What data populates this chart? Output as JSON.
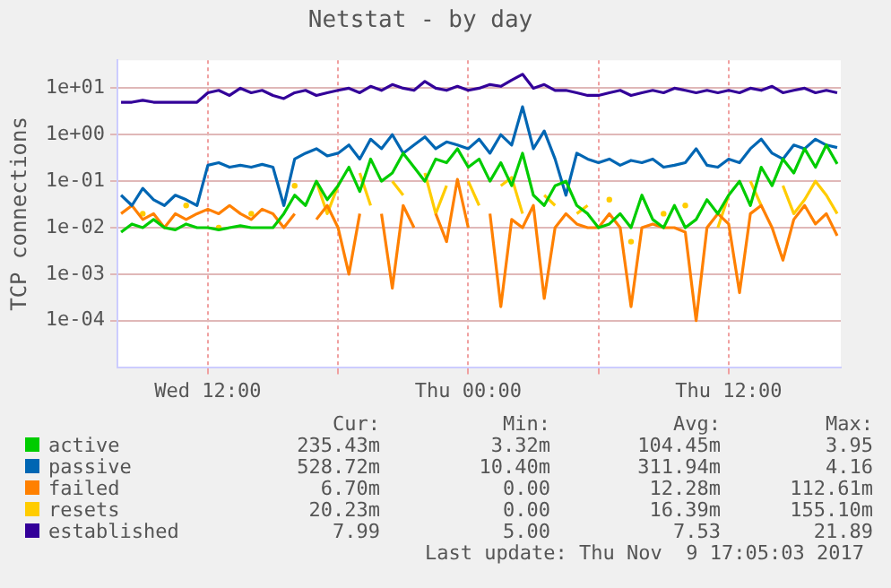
{
  "chart_data": {
    "type": "line",
    "title": "Netstat - by day",
    "ylabel": "TCP connections",
    "log": "y",
    "grid": true,
    "legend": "bottom",
    "marker": "none",
    "line_style": "solid",
    "ylim": [
      1e-05,
      40
    ],
    "yticks": [
      {
        "value": 0.0001,
        "label": "1e-04"
      },
      {
        "value": 0.001,
        "label": "1e-03"
      },
      {
        "value": 0.01,
        "label": "1e-02"
      },
      {
        "value": 0.1,
        "label": "1e-01"
      },
      {
        "value": 1,
        "label": "1e+00"
      },
      {
        "value": 10,
        "label": "1e+01"
      }
    ],
    "xlim": [
      "2017-11-08T07:50",
      "2017-11-09T17:10"
    ],
    "xticks": [
      {
        "value": "2017-11-08T12:00",
        "label": "Wed 12:00"
      },
      {
        "value": "2017-11-08T18:00",
        "label": null
      },
      {
        "value": "2017-11-09T00:00",
        "label": "Thu 00:00"
      },
      {
        "value": "2017-11-09T06:00",
        "label": null
      },
      {
        "value": "2017-11-09T12:00",
        "label": "Thu 12:00"
      }
    ],
    "x": [
      "2017-11-08T08:00",
      "2017-11-08T08:30",
      "2017-11-08T09:00",
      "2017-11-08T09:30",
      "2017-11-08T10:00",
      "2017-11-08T10:30",
      "2017-11-08T11:00",
      "2017-11-08T11:30",
      "2017-11-08T12:00",
      "2017-11-08T12:30",
      "2017-11-08T13:00",
      "2017-11-08T13:30",
      "2017-11-08T14:00",
      "2017-11-08T14:30",
      "2017-11-08T15:00",
      "2017-11-08T15:30",
      "2017-11-08T16:00",
      "2017-11-08T16:30",
      "2017-11-08T17:00",
      "2017-11-08T17:30",
      "2017-11-08T18:00",
      "2017-11-08T18:30",
      "2017-11-08T19:00",
      "2017-11-08T19:30",
      "2017-11-08T20:00",
      "2017-11-08T20:30",
      "2017-11-08T21:00",
      "2017-11-08T21:30",
      "2017-11-08T22:00",
      "2017-11-08T22:30",
      "2017-11-08T23:00",
      "2017-11-08T23:30",
      "2017-11-09T00:00",
      "2017-11-09T00:30",
      "2017-11-09T01:00",
      "2017-11-09T01:30",
      "2017-11-09T02:00",
      "2017-11-09T02:30",
      "2017-11-09T03:00",
      "2017-11-09T03:30",
      "2017-11-09T04:00",
      "2017-11-09T04:30",
      "2017-11-09T05:00",
      "2017-11-09T05:30",
      "2017-11-09T06:00",
      "2017-11-09T06:30",
      "2017-11-09T07:00",
      "2017-11-09T07:30",
      "2017-11-09T08:00",
      "2017-11-09T08:30",
      "2017-11-09T09:00",
      "2017-11-09T09:30",
      "2017-11-09T10:00",
      "2017-11-09T10:30",
      "2017-11-09T11:00",
      "2017-11-09T11:30",
      "2017-11-09T12:00",
      "2017-11-09T12:30",
      "2017-11-09T13:00",
      "2017-11-09T13:30",
      "2017-11-09T14:00",
      "2017-11-09T14:30",
      "2017-11-09T15:00",
      "2017-11-09T15:30",
      "2017-11-09T16:00",
      "2017-11-09T16:30",
      "2017-11-09T17:00"
    ],
    "series": [
      {
        "name": "active",
        "color": "#00cc00",
        "values": [
          0.008,
          0.012,
          0.01,
          0.015,
          0.01,
          0.009,
          0.012,
          0.01,
          0.01,
          0.009,
          0.01,
          0.011,
          0.01,
          0.01,
          0.01,
          0.02,
          0.05,
          0.03,
          0.1,
          0.04,
          0.08,
          0.2,
          0.06,
          0.3,
          0.1,
          0.15,
          0.4,
          0.2,
          0.1,
          0.3,
          0.25,
          0.5,
          0.2,
          0.3,
          0.1,
          0.25,
          0.08,
          0.4,
          0.05,
          0.03,
          0.08,
          0.1,
          0.03,
          0.02,
          0.01,
          0.012,
          0.02,
          0.01,
          0.05,
          0.015,
          0.01,
          0.03,
          0.01,
          0.015,
          0.04,
          0.02,
          0.05,
          0.1,
          0.03,
          0.2,
          0.08,
          0.3,
          0.15,
          0.5,
          0.2,
          0.6,
          0.235
        ]
      },
      {
        "name": "passive",
        "color": "#0066b3",
        "values": [
          0.05,
          0.03,
          0.07,
          0.04,
          0.03,
          0.05,
          0.04,
          0.03,
          0.22,
          0.25,
          0.2,
          0.22,
          0.2,
          0.23,
          0.2,
          0.03,
          0.3,
          0.4,
          0.5,
          0.35,
          0.4,
          0.6,
          0.3,
          0.8,
          0.5,
          1,
          0.4,
          0.6,
          0.9,
          0.5,
          0.7,
          0.6,
          0.5,
          0.8,
          0.4,
          1,
          0.6,
          4,
          0.5,
          1.2,
          0.3,
          0.05,
          0.4,
          0.3,
          0.25,
          0.3,
          0.22,
          0.28,
          0.25,
          0.3,
          0.2,
          0.22,
          0.25,
          0.5,
          0.22,
          0.2,
          0.3,
          0.25,
          0.5,
          0.8,
          0.4,
          0.3,
          0.6,
          0.5,
          0.8,
          0.6,
          0.53
        ]
      },
      {
        "name": "failed",
        "color": "#ff8000",
        "values": [
          0.02,
          0.03,
          0.015,
          0.02,
          0.01,
          0.02,
          0.015,
          0.02,
          0.025,
          0.02,
          0.03,
          0.02,
          0.015,
          0.025,
          0.02,
          0.01,
          0.02,
          null,
          0.015,
          0.03,
          0.01,
          0.001,
          0.02,
          null,
          0.02,
          0.0005,
          0.03,
          0.01,
          null,
          0.02,
          0.005,
          0.11,
          0.01,
          null,
          0.02,
          0.0002,
          0.015,
          0.01,
          0.03,
          0.0003,
          0.01,
          0.02,
          0.012,
          0.01,
          0.01,
          0.02,
          0.01,
          0.0002,
          0.01,
          0.012,
          0.01,
          0.01,
          0.008,
          0.0001,
          0.01,
          0.02,
          0.012,
          0.0004,
          0.02,
          0.03,
          0.01,
          0.002,
          0.015,
          0.03,
          0.012,
          0.02,
          0.0067
        ]
      },
      {
        "name": "resets",
        "color": "#ffcc00",
        "values": [
          null,
          null,
          0.02,
          null,
          null,
          null,
          0.03,
          null,
          null,
          0.01,
          null,
          null,
          0.02,
          null,
          null,
          null,
          0.08,
          null,
          0.1,
          0.02,
          0.08,
          null,
          0.15,
          0.03,
          null,
          0.1,
          0.05,
          null,
          0.15,
          0.02,
          0.08,
          null,
          0.1,
          0.03,
          null,
          0.08,
          0.12,
          0.02,
          null,
          0.05,
          0.03,
          null,
          0.02,
          0.03,
          null,
          0.04,
          null,
          0.005,
          null,
          null,
          0.02,
          null,
          0.03,
          null,
          null,
          0.01,
          0.05,
          null,
          0.1,
          0.03,
          null,
          0.08,
          0.02,
          0.04,
          0.1,
          0.05,
          0.02
        ]
      },
      {
        "name": "established",
        "color": "#330099",
        "values": [
          5,
          5,
          5.5,
          5,
          5,
          5,
          5,
          5,
          8,
          9,
          7,
          10,
          8,
          9,
          7,
          6,
          8,
          9,
          7,
          8,
          9,
          10,
          8,
          11,
          9,
          12,
          10,
          9,
          14,
          10,
          9,
          11,
          9,
          10,
          12,
          11,
          15,
          20,
          10,
          12,
          9,
          9,
          8,
          7,
          7,
          8,
          9,
          7,
          8,
          9,
          8,
          10,
          9,
          8,
          9,
          8,
          9,
          8,
          10,
          9,
          11,
          8,
          9,
          10,
          8,
          9,
          8
        ]
      }
    ],
    "annotations": [
      "Cur:",
      "Min:",
      "Avg:",
      "Max:",
      "235.43m",
      "3.32m",
      "104.45m",
      "3.95",
      "528.72m",
      "10.40m",
      "311.94m",
      "4.16",
      "6.70m",
      "0.00",
      "12.28m",
      "112.61m",
      "20.23m",
      "0.00",
      "16.39m",
      "155.10m",
      "7.99",
      "5.00",
      "7.53",
      "21.89",
      "Last update: Thu Nov  9 17:05:03 2017"
    ]
  }
}
